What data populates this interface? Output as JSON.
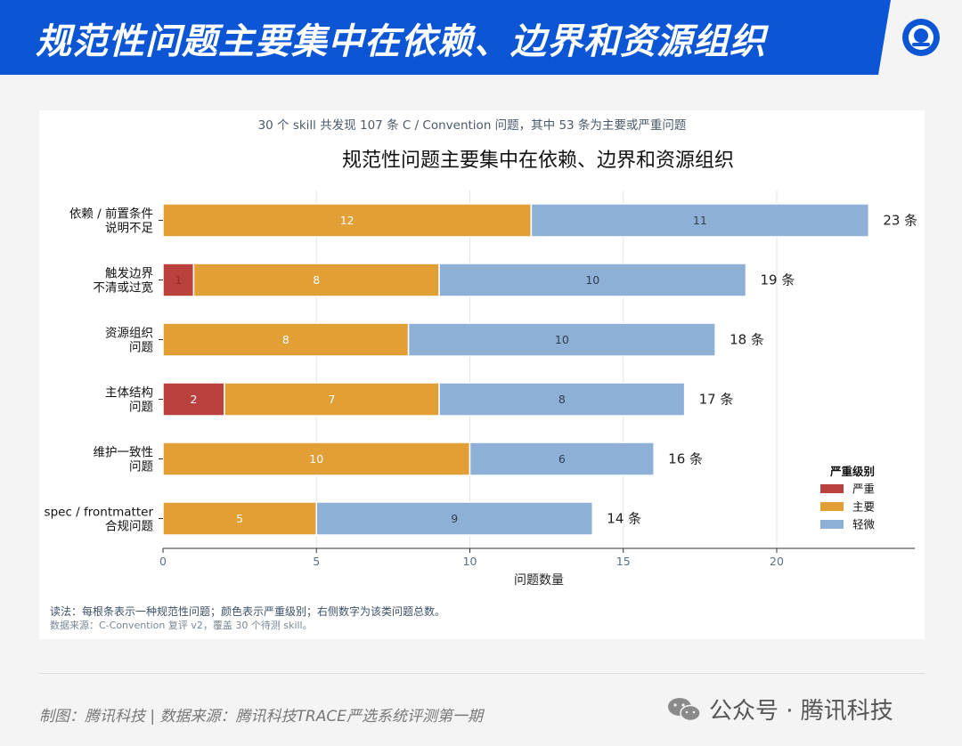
{
  "banner": {
    "title": "规范性问题主要集中在依赖、边界和资源组织"
  },
  "card": {
    "subtitle": "30 个 skill 共发现 107 条 C / Convention 问题，其中 53 条为主要或严重问题",
    "note": "读法：每根条表示一种规范性问题；颜色表示严重级别；右侧数字为该类问题总数。",
    "source": "数据来源：C-Convention 复评 v2，覆盖 30 个待测 skill。"
  },
  "footer": {
    "credit": "制图：腾讯科技 | 数据来源：腾讯科技TRACE严选系统评测第一期",
    "watermark": "公众号 · 腾讯科技"
  },
  "colors": {
    "severe": "#b9413e",
    "major": "#e19f35",
    "minor": "#8eb0d6",
    "banner": "#0c56d6"
  },
  "chart_data": {
    "type": "bar",
    "orientation": "horizontal",
    "stacked": true,
    "title": "规范性问题主要集中在依赖、边界和资源组织",
    "xlabel": "问题数量",
    "ylabel": "",
    "xlim": [
      0,
      24.5
    ],
    "xticks": [
      0,
      5,
      10,
      15,
      20
    ],
    "grid": "vertical",
    "categories": [
      [
        "依赖 / 前置条件",
        "说明不足"
      ],
      [
        "触发边界",
        "不清或过宽"
      ],
      [
        "资源组织",
        "问题"
      ],
      [
        "主体结构",
        "问题"
      ],
      [
        "维护一致性",
        "问题"
      ],
      [
        "spec / frontmatter",
        "合规问题"
      ]
    ],
    "series": [
      {
        "name": "严重",
        "color": "#b9413e",
        "values": [
          0,
          1,
          0,
          2,
          0,
          0
        ]
      },
      {
        "name": "主要",
        "color": "#e19f35",
        "values": [
          12,
          8,
          8,
          7,
          10,
          5
        ]
      },
      {
        "name": "轻微",
        "color": "#8eb0d6",
        "values": [
          11,
          10,
          10,
          8,
          6,
          9
        ]
      }
    ],
    "totals": [
      23,
      19,
      18,
      17,
      16,
      14
    ],
    "total_suffix": "条",
    "legend": {
      "title": "严重级别",
      "position": "bottom-right"
    }
  }
}
